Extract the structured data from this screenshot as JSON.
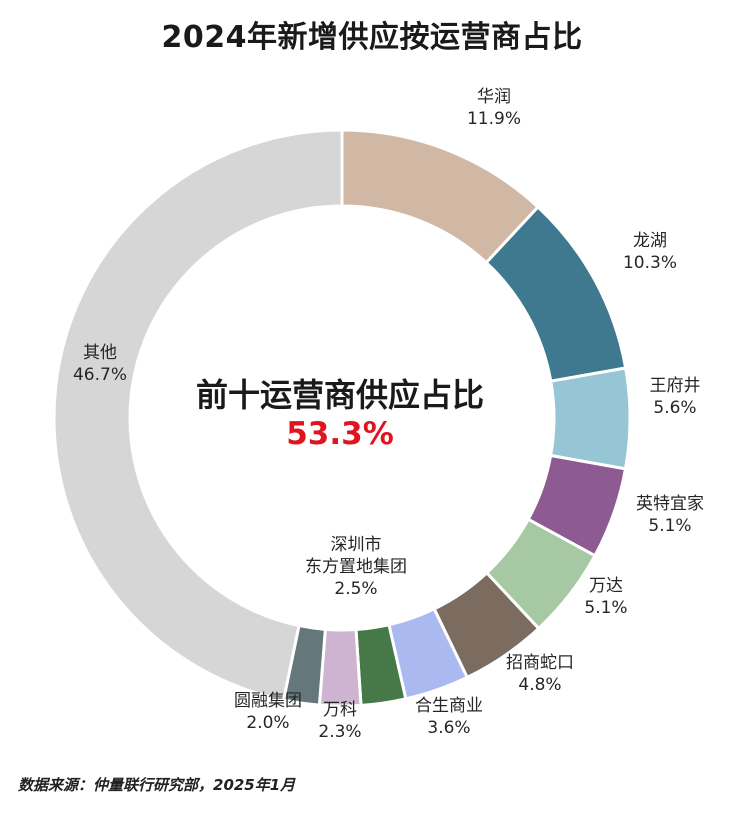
{
  "chart_data": {
    "type": "pie",
    "title": "2024年新增供应按运营商占比",
    "center_title": "前十运营商供应占比",
    "center_value": "53.3%",
    "slices": [
      {
        "label": [
          "华润"
        ],
        "value": 11.9,
        "value_label": "11.9%",
        "color": "#d1b8a5"
      },
      {
        "label": [
          "龙湖"
        ],
        "value": 10.3,
        "value_label": "10.3%",
        "color": "#3f798f"
      },
      {
        "label": [
          "王府井"
        ],
        "value": 5.6,
        "value_label": "5.6%",
        "color": "#96c5d6"
      },
      {
        "label": [
          "英特宜家"
        ],
        "value": 5.1,
        "value_label": "5.1%",
        "color": "#8e5a92"
      },
      {
        "label": [
          "万达"
        ],
        "value": 5.1,
        "value_label": "5.1%",
        "color": "#a6c9a3"
      },
      {
        "label": [
          "招商蛇口"
        ],
        "value": 4.8,
        "value_label": "4.8%",
        "color": "#7b6c5f"
      },
      {
        "label": [
          "合生商业"
        ],
        "value": 3.6,
        "value_label": "3.6%",
        "color": "#abb9f1"
      },
      {
        "label": [
          "深圳市",
          "东方置地集团"
        ],
        "value": 2.5,
        "value_label": "2.5%",
        "color": "#477848"
      },
      {
        "label": [
          "万科"
        ],
        "value": 2.3,
        "value_label": "2.3%",
        "color": "#cfb4d1"
      },
      {
        "label": [
          "圆融集团"
        ],
        "value": 2.0,
        "value_label": "2.0%",
        "color": "#65777b"
      },
      {
        "label": [
          "其他"
        ],
        "value": 46.7,
        "value_label": "46.7%",
        "color": "#d6d6d6"
      }
    ]
  },
  "source_note": "数据来源：仲量联行研究部，2025年1月"
}
